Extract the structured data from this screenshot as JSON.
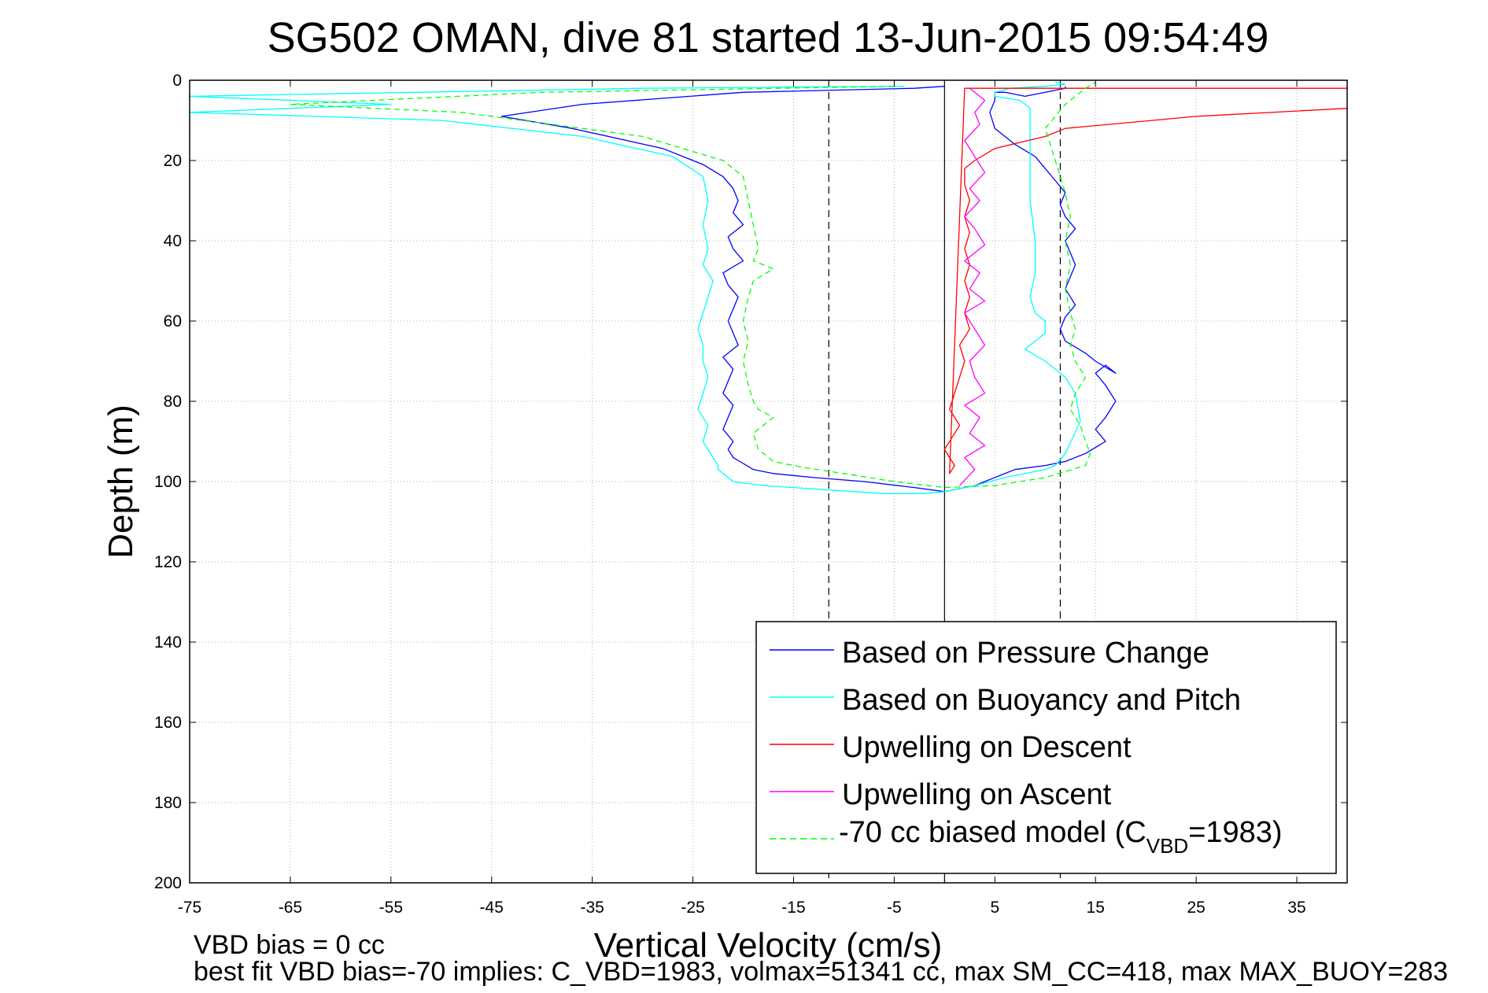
{
  "chart_data": {
    "type": "line",
    "title": "SG502 OMAN, dive 81 started 13-Jun-2015 09:54:49",
    "xlabel": "Vertical Velocity (cm/s)",
    "ylabel": "Depth (m)",
    "xlim": [
      -75,
      40
    ],
    "ylim": [
      0,
      200
    ],
    "y_reversed": true,
    "xticks": [
      -75,
      -65,
      -55,
      -45,
      -35,
      -25,
      -15,
      -5,
      5,
      15,
      25,
      35
    ],
    "yticks": [
      0,
      20,
      40,
      60,
      80,
      100,
      120,
      140,
      160,
      180,
      200
    ],
    "grid": true,
    "legend_position": "bottom-right",
    "reference_lines": [
      {
        "x": 0,
        "style": "solid",
        "color": "#000000"
      },
      {
        "x": -11.5,
        "style": "dashed",
        "color": "#000000"
      },
      {
        "x": 11.5,
        "style": "dashed",
        "color": "#000000"
      }
    ],
    "series": [
      {
        "name": "Based on Pressure Change",
        "color": "#0000ff",
        "style": "solid",
        "x": [
          0,
          -3,
          -20,
          -36,
          -44,
          -37,
          -28,
          -24,
          -22,
          -21,
          -20.5,
          -21,
          -20,
          -21.5,
          -21,
          -20,
          -22,
          -21.5,
          -20.5,
          -21,
          -21.5,
          -21,
          -20.5,
          -22,
          -21,
          -21.5,
          -22,
          -21,
          -21.5,
          -22,
          -21,
          -21.5,
          -21,
          -20,
          -19,
          -17,
          -13,
          -8,
          -3,
          0,
          3,
          7,
          10,
          12,
          14,
          16,
          15,
          16,
          17,
          16,
          15,
          16,
          17,
          15,
          14,
          12,
          11.5,
          12,
          13,
          12,
          12.5,
          13,
          12.5,
          12,
          13,
          12,
          11.5,
          12,
          11,
          10,
          9,
          7,
          5,
          4.5,
          5,
          5,
          6,
          8,
          10,
          12,
          12
        ],
        "y": [
          1.5,
          2,
          3,
          6,
          9,
          12,
          17,
          21,
          24,
          27,
          30,
          33,
          36,
          39,
          42,
          45,
          48,
          51,
          54,
          57,
          60,
          63,
          66,
          69,
          72,
          75,
          78,
          81,
          84,
          87,
          90,
          92,
          94,
          95.5,
          97,
          98,
          99,
          100,
          101.5,
          102.5,
          101,
          97,
          96,
          95,
          93,
          90,
          87,
          84,
          80,
          76,
          73,
          71,
          73,
          70,
          68,
          65,
          62,
          59,
          56,
          52,
          49,
          46,
          43,
          40,
          37,
          34,
          31,
          28,
          25,
          22,
          19,
          16,
          12,
          8,
          5,
          3,
          3,
          4,
          3,
          2,
          1.5
        ]
      },
      {
        "name": "Based on Buoyancy and Pitch",
        "color": "#00ffff",
        "style": "solid",
        "x": [
          -4,
          -30,
          -75,
          -55,
          -75,
          -50,
          -36,
          -27,
          -24,
          -23.5,
          -24,
          -23.5,
          -24,
          -23,
          -23.5,
          -24,
          -24.5,
          -24,
          -24,
          -23.5,
          -24,
          -24.5,
          -23.5,
          -24,
          -23,
          -22.5,
          -22.5,
          -22,
          -21.5,
          -21,
          -18,
          -12,
          -6,
          -2,
          0,
          3,
          6,
          8,
          10,
          11,
          12,
          13.5,
          13,
          12,
          11,
          10,
          8,
          9,
          10,
          10,
          9,
          8.5,
          9,
          9,
          8.5,
          8.5,
          8.5,
          8.5,
          8.5,
          7.5,
          5,
          5,
          6.5,
          10,
          12,
          11
        ],
        "y": [
          1.5,
          2,
          4,
          6,
          8,
          10,
          14,
          19,
          24,
          30,
          36,
          42,
          46,
          50,
          54,
          58,
          62,
          66,
          70,
          74,
          78,
          82,
          86,
          90,
          94,
          96,
          97,
          98,
          99,
          100,
          101,
          102,
          103,
          103,
          102.5,
          101,
          99,
          98,
          97,
          96,
          93,
          85,
          78,
          74,
          72,
          70,
          67,
          65,
          63,
          60,
          58,
          54,
          48,
          40,
          30,
          20,
          14,
          10,
          7,
          5,
          4,
          3,
          2,
          1.5,
          1,
          0.5
        ]
      },
      {
        "name": "Upwelling on Descent",
        "color": "#ff0000",
        "style": "solid",
        "x": [
          40,
          2,
          0.5,
          1,
          0,
          1.5,
          0.5,
          1,
          1.5,
          2,
          1.5,
          2.5,
          2,
          2.5,
          2,
          2.5,
          2,
          2.5,
          2,
          2.5,
          2,
          2,
          3,
          5,
          10,
          12,
          25,
          40
        ],
        "y": [
          2,
          2,
          98,
          96,
          92,
          86,
          82,
          78,
          74,
          70,
          66,
          62,
          58,
          54,
          50,
          46,
          42,
          38,
          34,
          30,
          26,
          22,
          20,
          17,
          14,
          12,
          9,
          7
        ]
      },
      {
        "name": "Upwelling on Ascent",
        "color": "#ff00ff",
        "style": "solid",
        "x": [
          1.5,
          3,
          2,
          4,
          2.5,
          3.5,
          2,
          4,
          3,
          2.5,
          4,
          3,
          2,
          4,
          2.5,
          3.5,
          2,
          4,
          3,
          2,
          3.5,
          2.5,
          4,
          3,
          2,
          3.5,
          3,
          4,
          2.5
        ],
        "y": [
          101,
          97,
          94,
          91,
          88,
          84,
          81,
          78,
          74,
          70,
          66,
          62,
          58,
          55,
          52,
          48,
          45,
          41,
          37,
          34,
          30,
          27,
          23,
          19,
          15,
          11,
          8,
          5,
          2
        ]
      },
      {
        "name": "-70 cc biased model (C",
        "name_subscript": "VBD",
        "name_suffix": "=1983)",
        "color": "#00ff00",
        "style": "dashed",
        "x": [
          -5,
          -40,
          -65,
          -48,
          -30,
          -22,
          -20,
          -19.5,
          -19,
          -18.5,
          -19,
          -17,
          -19,
          -19.5,
          -20,
          -19.5,
          -20,
          -19.5,
          -19,
          -18.5,
          -17,
          -19,
          -18.5,
          -17,
          -14,
          -10,
          -5,
          0,
          5,
          10,
          14,
          14.5,
          14,
          13.5,
          12.5,
          13,
          14,
          13,
          12.5,
          13,
          12.5,
          12,
          12.5,
          12,
          12.5,
          12,
          11,
          10,
          12,
          14,
          15
        ],
        "y": [
          1.5,
          3,
          6,
          8,
          14,
          20,
          24,
          30,
          36,
          42,
          45,
          47,
          50,
          54,
          60,
          65,
          70,
          76,
          80,
          82,
          84,
          88,
          92,
          95,
          96.5,
          98,
          100,
          101.5,
          101,
          99,
          96,
          93,
          90,
          86,
          82,
          78,
          74,
          70,
          66,
          62,
          58,
          52,
          46,
          40,
          34,
          28,
          20,
          12,
          6,
          2,
          0.5
        ]
      }
    ]
  },
  "footer": {
    "line1": "VBD bias = 0 cc",
    "line2": "best fit VBD bias=-70 implies: C_VBD=1983, volmax=51341 cc, max SM_CC=418, max MAX_BUOY=283"
  }
}
